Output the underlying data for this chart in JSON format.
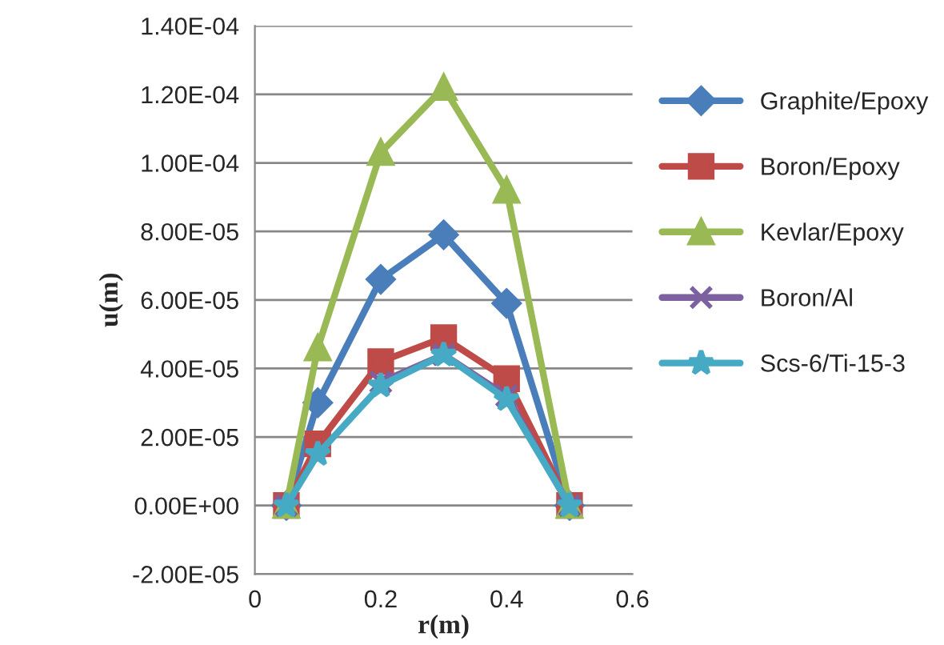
{
  "chart_data": {
    "type": "line",
    "xlabel": "r(m)",
    "ylabel": "u(m)",
    "xlim": [
      0,
      0.6
    ],
    "xticks": [
      0,
      0.2,
      0.4,
      0.6
    ],
    "ylim": [
      -2e-05,
      0.00014
    ],
    "yticks": [
      {
        "value": -2e-05,
        "label": "-2.00E-05"
      },
      {
        "value": 0,
        "label": "0.00E+00"
      },
      {
        "value": 2e-05,
        "label": "2.00E-05"
      },
      {
        "value": 4e-05,
        "label": "4.00E-05"
      },
      {
        "value": 6e-05,
        "label": "6.00E-05"
      },
      {
        "value": 8e-05,
        "label": "8.00E-05"
      },
      {
        "value": 0.0001,
        "label": "1.00E-04"
      },
      {
        "value": 0.00012,
        "label": "1.20E-04"
      },
      {
        "value": 0.00014,
        "label": "1.40E-04"
      }
    ],
    "grid": "y",
    "legend": "right",
    "x": [
      0.05,
      0.1,
      0.2,
      0.3,
      0.4,
      0.5
    ],
    "series": [
      {
        "name": "Graphite/Epoxy",
        "color": "#4a7ebb",
        "marker": "diamond",
        "values": [
          0,
          3e-05,
          6.6e-05,
          7.9e-05,
          5.9e-05,
          0
        ]
      },
      {
        "name": "Boron/Epoxy",
        "color": "#be4b48",
        "marker": "square",
        "values": [
          0,
          1.8e-05,
          4.2e-05,
          4.9e-05,
          3.7e-05,
          0
        ]
      },
      {
        "name": "Kevlar/Epoxy",
        "color": "#98b954",
        "marker": "triangle",
        "values": [
          0,
          4.6e-05,
          0.000103,
          0.000122,
          9.2e-05,
          0
        ]
      },
      {
        "name": "Boron/Al",
        "color": "#7d60a0",
        "marker": "cross",
        "values": [
          0,
          null,
          3.6e-05,
          4.4e-05,
          3.2e-05,
          0
        ]
      },
      {
        "name": "Scs-6/Ti-15-3",
        "color": "#46aac5",
        "marker": "star",
        "values": [
          0,
          1.5e-05,
          3.5e-05,
          4.4e-05,
          3.1e-05,
          0
        ]
      }
    ]
  }
}
